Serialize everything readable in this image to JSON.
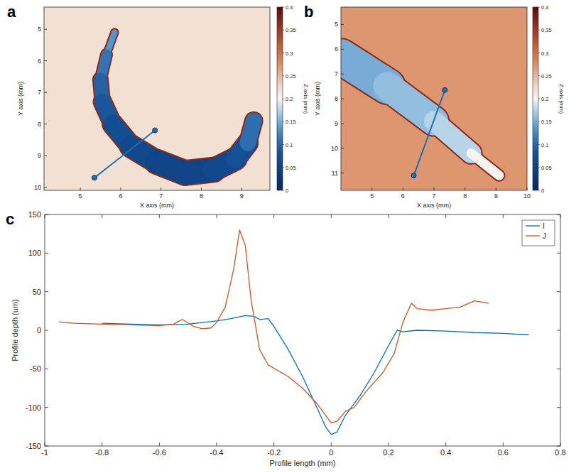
{
  "chart_data": [
    {
      "type": "surface_map",
      "panel_label": "a",
      "x_label": "X axis (mm)",
      "y_label": "Y axis (mm)",
      "xlim": [
        4.1,
        9.7
      ],
      "xticks": [
        5,
        6,
        7,
        8,
        9
      ],
      "ylim": [
        4.3,
        10.1
      ],
      "yticks": [
        5,
        6,
        7,
        8,
        9,
        10
      ],
      "colorbar": {
        "label": "Z axis (mm)",
        "range": [
          0,
          0.4
        ],
        "ticks": [
          0,
          0.05,
          0.1,
          0.15,
          0.2,
          0.25,
          0.3,
          0.35,
          0.4
        ]
      },
      "background_z": 0.22,
      "groove": {
        "x": [
          5.85,
          5.65,
          5.5,
          5.55,
          5.8,
          6.25,
          6.9,
          7.6,
          8.3,
          8.85,
          9.15,
          9.3
        ],
        "y": [
          5.1,
          5.8,
          6.6,
          7.3,
          8.0,
          8.7,
          9.2,
          9.55,
          9.45,
          9.1,
          8.6,
          7.9
        ],
        "width": [
          0.1,
          0.2,
          0.3,
          0.38,
          0.45,
          0.5,
          0.55,
          0.6,
          0.55,
          0.5,
          0.45,
          0.35
        ],
        "z": [
          0.15,
          0.12,
          0.1,
          0.09,
          0.08,
          0.07,
          0.06,
          0.05,
          0.06,
          0.07,
          0.09,
          0.12
        ]
      },
      "profile": {
        "x": [
          5.35,
          6.85
        ],
        "y": [
          9.7,
          8.2
        ]
      }
    },
    {
      "type": "surface_map",
      "panel_label": "b",
      "x_label": "X axis (mm)",
      "y_label": "Y axis (mm)",
      "xlim": [
        4.0,
        10
      ],
      "xticks": [
        5,
        6,
        7,
        8,
        9,
        10
      ],
      "ylim": [
        4.3,
        11.7
      ],
      "yticks": [
        5,
        6,
        7,
        8,
        9,
        10,
        11
      ],
      "colorbar": {
        "label": "Z axis (mm)",
        "range": [
          0,
          0.4
        ],
        "ticks": [
          0,
          0.05,
          0.1,
          0.15,
          0.2,
          0.25,
          0.3,
          0.35,
          0.4
        ]
      },
      "background_z": 0.27,
      "groove": {
        "x": [
          4.0,
          5.5,
          7.0,
          8.2,
          9.1
        ],
        "y": [
          6.3,
          7.5,
          8.9,
          10.2,
          11.1
        ],
        "width": [
          1.2,
          1.05,
          0.8,
          0.5,
          0.12
        ],
        "z": [
          0.15,
          0.15,
          0.17,
          0.18,
          0.22
        ]
      },
      "profile": {
        "x": [
          6.35,
          7.35
        ],
        "y": [
          11.1,
          7.65
        ]
      }
    },
    {
      "type": "line",
      "panel_label": "c",
      "x_label": "Profile length (mm)",
      "y_label": "Profile depth (um)",
      "xlim": [
        -1,
        0.8
      ],
      "xticks": [
        -1,
        -0.8,
        -0.6,
        -0.4,
        -0.2,
        0,
        0.2,
        0.4,
        0.6,
        0.8
      ],
      "ylim": [
        -150,
        150
      ],
      "yticks": [
        -150,
        -100,
        -50,
        0,
        50,
        100,
        150
      ],
      "legend": "upper right",
      "series": [
        {
          "name": "I",
          "color": "#0072bd",
          "x": [
            -0.8,
            -0.7,
            -0.6,
            -0.5,
            -0.4,
            -0.35,
            -0.3,
            -0.27,
            -0.25,
            -0.22,
            -0.2,
            -0.15,
            -0.1,
            -0.05,
            -0.02,
            0,
            0.02,
            0.05,
            0.1,
            0.15,
            0.2,
            0.23,
            0.25,
            0.3,
            0.4,
            0.5,
            0.6,
            0.69
          ],
          "values": [
            9,
            8,
            7,
            8,
            12,
            15,
            19,
            18,
            14,
            15,
            5,
            -25,
            -60,
            -100,
            -125,
            -135,
            -132,
            -110,
            -85,
            -55,
            -20,
            0,
            -2,
            0,
            -1,
            -3,
            -4,
            -6
          ]
        },
        {
          "name": "J",
          "color": "#d95319",
          "x": [
            -0.95,
            -0.9,
            -0.8,
            -0.7,
            -0.6,
            -0.55,
            -0.52,
            -0.48,
            -0.45,
            -0.42,
            -0.4,
            -0.37,
            -0.34,
            -0.32,
            -0.3,
            -0.28,
            -0.25,
            -0.22,
            -0.15,
            -0.1,
            -0.05,
            -0.02,
            0,
            0.02,
            0.05,
            0.08,
            0.12,
            0.18,
            0.22,
            0.25,
            0.28,
            0.3,
            0.35,
            0.4,
            0.45,
            0.5,
            0.55
          ],
          "values": [
            11,
            9,
            8,
            7,
            6,
            8,
            14,
            5,
            2,
            3,
            10,
            30,
            80,
            130,
            110,
            40,
            -25,
            -45,
            -60,
            -75,
            -95,
            -110,
            -120,
            -118,
            -105,
            -100,
            -80,
            -55,
            -30,
            10,
            35,
            28,
            26,
            28,
            30,
            38,
            35
          ]
        }
      ]
    }
  ]
}
